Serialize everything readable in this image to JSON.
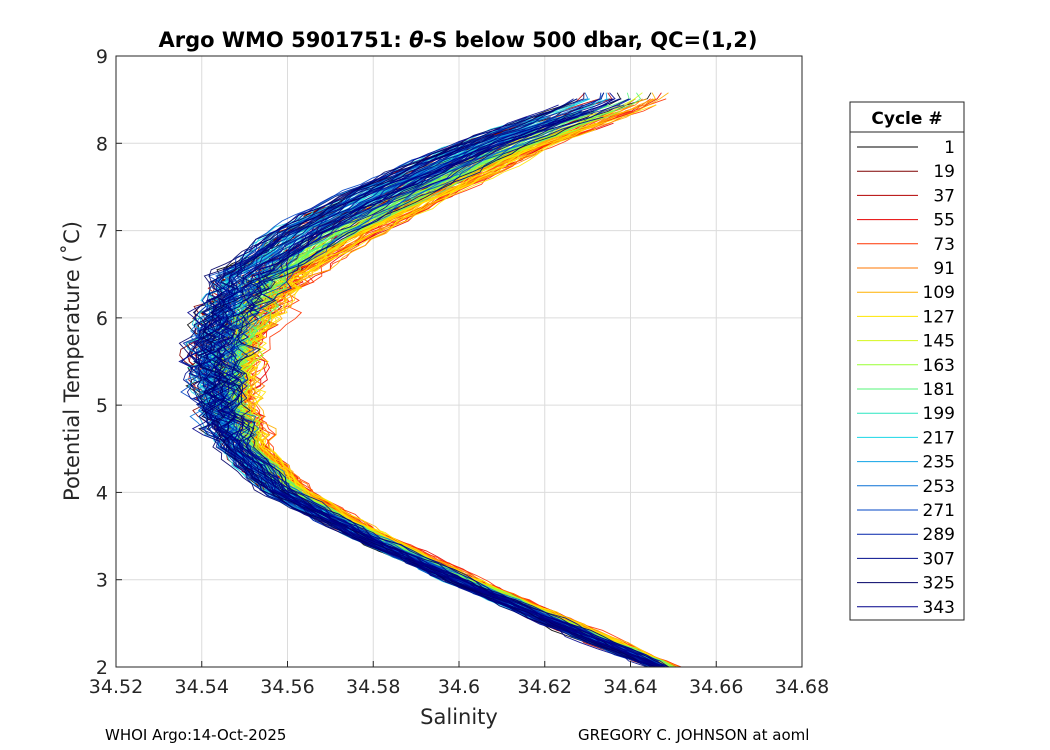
{
  "chart_data": {
    "type": "line",
    "title": "Argo WMO 5901751: θ-S below 500 dbar,  QC=(1,2)",
    "title_parts": {
      "prefix": "Argo WMO 5901751: ",
      "symbol": "θ",
      "suffix": "-S below 500 dbar,  QC=(1,2)"
    },
    "xlabel": "Salinity",
    "ylabel": "Potential Temperature (˚C)",
    "xlim": [
      34.52,
      34.68
    ],
    "ylim": [
      2,
      9
    ],
    "xticks": [
      "34.52",
      "34.54",
      "34.56",
      "34.58",
      "34.6",
      "34.62",
      "34.64",
      "34.66",
      "34.68"
    ],
    "yticks": [
      "2",
      "3",
      "4",
      "5",
      "6",
      "7",
      "8",
      "9"
    ],
    "grid": true,
    "legend": {
      "title": "Cycle #",
      "position": "right",
      "entries": [
        {
          "label": "1",
          "color": "#000000"
        },
        {
          "label": "19",
          "color": "#7f0000"
        },
        {
          "label": "37",
          "color": "#b30000"
        },
        {
          "label": "55",
          "color": "#e60000"
        },
        {
          "label": "73",
          "color": "#ff3300"
        },
        {
          "label": "91",
          "color": "#ff7700"
        },
        {
          "label": "109",
          "color": "#ffb000"
        },
        {
          "label": "127",
          "color": "#ffe600"
        },
        {
          "label": "145",
          "color": "#d4f71c"
        },
        {
          "label": "163",
          "color": "#99ff33"
        },
        {
          "label": "181",
          "color": "#55f57a"
        },
        {
          "label": "199",
          "color": "#2ae6c0"
        },
        {
          "label": "217",
          "color": "#19d6e6"
        },
        {
          "label": "235",
          "color": "#0fa3e6"
        },
        {
          "label": "253",
          "color": "#0a70d6"
        },
        {
          "label": "271",
          "color": "#0044c4"
        },
        {
          "label": "289",
          "color": "#0022aa"
        },
        {
          "label": "307",
          "color": "#000c8c"
        },
        {
          "label": "325",
          "color": "#000066"
        },
        {
          "label": "343",
          "color": "#00008a"
        }
      ]
    },
    "series_shape": {
      "theta": [
        2.0,
        2.5,
        3.0,
        3.5,
        4.0,
        4.5,
        5.0,
        5.5,
        6.0,
        6.5,
        7.0,
        7.5,
        8.0,
        8.5
      ],
      "salinity_warm_side": [
        34.651,
        34.628,
        34.605,
        34.583,
        34.566,
        34.556,
        34.551,
        34.552,
        34.557,
        34.566,
        34.584,
        34.604,
        34.624,
        34.65
      ],
      "salinity_fresh_side": [
        34.645,
        34.62,
        34.597,
        34.575,
        34.555,
        34.545,
        34.541,
        34.539,
        34.54,
        34.545,
        34.557,
        34.577,
        34.6,
        34.628
      ]
    }
  },
  "footer": {
    "left": "WHOI Argo:14-Oct-2025",
    "right": "GREGORY C. JOHNSON at aoml"
  }
}
